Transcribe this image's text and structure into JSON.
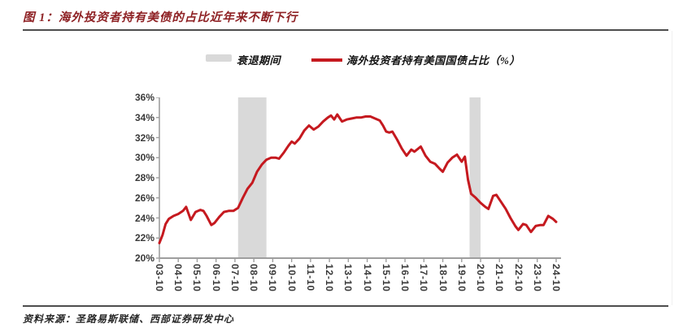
{
  "figure": {
    "title": "图 1：海外投资者持有美债的占比近年来不断下行",
    "source": "资料来源：圣路易斯联储、西部证券研发中心"
  },
  "legend": {
    "band_label": "衰退期间",
    "line_label": "海外投资者持有美国国债占比（%）"
  },
  "colors": {
    "line": "#c5191f",
    "recession_band": "#d9d9d9",
    "axis": "#9e9e9e",
    "title": "#8e2124"
  },
  "chart_data": {
    "type": "line",
    "title": "海外投资者持有美国国债占比（%）",
    "xlabel": "",
    "ylabel": "",
    "ylim": [
      20,
      36
    ],
    "grid": false,
    "legend_position": "top",
    "y_tick_labels": [
      "36%",
      "34%",
      "32%",
      "30%",
      "28%",
      "26%",
      "24%",
      "22%",
      "20%"
    ],
    "x_tick_labels": [
      "03-10",
      "04-10",
      "05-10",
      "06-10",
      "07-10",
      "08-10",
      "09-10",
      "10-10",
      "11-10",
      "12-10",
      "13-10",
      "14-10",
      "15-10",
      "16-10",
      "17-10",
      "18-10",
      "19-10",
      "20-10",
      "21-10",
      "22-10",
      "23-10",
      "24-10"
    ],
    "recession_bands": [
      {
        "start": "2007-12",
        "end": "2009-06"
      },
      {
        "start": "2020-03",
        "end": "2020-10"
      }
    ],
    "series": [
      {
        "name": "海外投资者持有美国国债占比（%）",
        "color": "#c5191f",
        "points": [
          [
            "2003-10",
            21.5
          ],
          [
            "2003-12",
            22.3
          ],
          [
            "2004-02",
            23.4
          ],
          [
            "2004-04",
            23.9
          ],
          [
            "2004-07",
            24.2
          ],
          [
            "2004-10",
            24.4
          ],
          [
            "2005-01",
            24.7
          ],
          [
            "2005-03",
            25.1
          ],
          [
            "2005-06",
            23.8
          ],
          [
            "2005-09",
            24.6
          ],
          [
            "2005-12",
            24.8
          ],
          [
            "2006-02",
            24.7
          ],
          [
            "2006-04",
            24.2
          ],
          [
            "2006-07",
            23.3
          ],
          [
            "2006-09",
            23.5
          ],
          [
            "2006-12",
            24.1
          ],
          [
            "2007-03",
            24.6
          ],
          [
            "2007-06",
            24.7
          ],
          [
            "2007-09",
            24.7
          ],
          [
            "2007-12",
            25.0
          ],
          [
            "2008-03",
            26.0
          ],
          [
            "2008-06",
            26.9
          ],
          [
            "2008-09",
            27.5
          ],
          [
            "2008-12",
            28.6
          ],
          [
            "2009-03",
            29.3
          ],
          [
            "2009-06",
            29.8
          ],
          [
            "2009-09",
            30.0
          ],
          [
            "2009-12",
            30.0
          ],
          [
            "2010-02",
            29.9
          ],
          [
            "2010-05",
            30.5
          ],
          [
            "2010-08",
            31.2
          ],
          [
            "2010-10",
            31.6
          ],
          [
            "2010-12",
            31.4
          ],
          [
            "2011-03",
            31.9
          ],
          [
            "2011-06",
            32.7
          ],
          [
            "2011-09",
            33.2
          ],
          [
            "2011-12",
            32.8
          ],
          [
            "2012-03",
            33.1
          ],
          [
            "2012-06",
            33.6
          ],
          [
            "2012-09",
            34.0
          ],
          [
            "2012-11",
            34.2
          ],
          [
            "2013-01",
            33.8
          ],
          [
            "2013-03",
            34.3
          ],
          [
            "2013-06",
            33.6
          ],
          [
            "2013-09",
            33.8
          ],
          [
            "2013-12",
            33.9
          ],
          [
            "2014-03",
            34.0
          ],
          [
            "2014-06",
            34.0
          ],
          [
            "2014-09",
            34.1
          ],
          [
            "2014-12",
            34.1
          ],
          [
            "2015-03",
            33.9
          ],
          [
            "2015-06",
            33.7
          ],
          [
            "2015-08",
            33.2
          ],
          [
            "2015-10",
            32.6
          ],
          [
            "2015-12",
            32.5
          ],
          [
            "2016-02",
            32.6
          ],
          [
            "2016-05",
            31.8
          ],
          [
            "2016-08",
            30.9
          ],
          [
            "2016-11",
            30.2
          ],
          [
            "2017-02",
            30.8
          ],
          [
            "2017-04",
            30.6
          ],
          [
            "2017-08",
            31.1
          ],
          [
            "2017-11",
            30.2
          ],
          [
            "2018-02",
            29.6
          ],
          [
            "2018-05",
            29.4
          ],
          [
            "2018-08",
            28.9
          ],
          [
            "2018-10",
            28.6
          ],
          [
            "2019-01",
            29.5
          ],
          [
            "2019-04",
            30.0
          ],
          [
            "2019-07",
            30.3
          ],
          [
            "2019-10",
            29.6
          ],
          [
            "2019-12",
            30.1
          ],
          [
            "2020-02",
            27.8
          ],
          [
            "2020-04",
            26.4
          ],
          [
            "2020-07",
            26.0
          ],
          [
            "2020-10",
            25.5
          ],
          [
            "2021-01",
            25.1
          ],
          [
            "2021-03",
            24.9
          ],
          [
            "2021-06",
            26.2
          ],
          [
            "2021-08",
            26.3
          ],
          [
            "2021-11",
            25.6
          ],
          [
            "2022-02",
            24.9
          ],
          [
            "2022-05",
            24.0
          ],
          [
            "2022-08",
            23.2
          ],
          [
            "2022-10",
            22.8
          ],
          [
            "2023-01",
            23.4
          ],
          [
            "2023-03",
            23.3
          ],
          [
            "2023-06",
            22.6
          ],
          [
            "2023-09",
            23.2
          ],
          [
            "2023-12",
            23.3
          ],
          [
            "2024-02",
            23.3
          ],
          [
            "2024-05",
            24.2
          ],
          [
            "2024-08",
            23.9
          ],
          [
            "2024-10",
            23.6
          ]
        ]
      }
    ]
  }
}
